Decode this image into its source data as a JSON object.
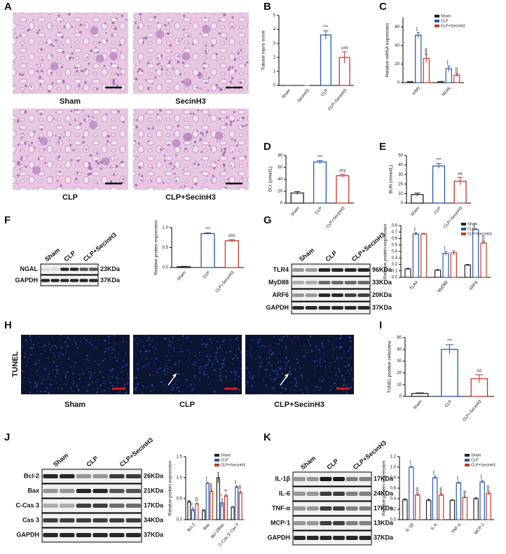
{
  "figure": {
    "panel_labels": [
      "A",
      "B",
      "C",
      "D",
      "E",
      "F",
      "G",
      "H",
      "I",
      "J",
      "K"
    ],
    "histology": {
      "labels": [
        "Sham",
        "SecinH3",
        "CLP",
        "CLP+SecinH3"
      ]
    },
    "tunel": {
      "stain": "TUNEL",
      "labels": [
        "Sham",
        "CLP",
        "CLP+SecinH3"
      ]
    },
    "blots": [
      {
        "lanes": [
          "Sham",
          "CLP",
          "CLP+SecinH3"
        ],
        "proteins": [
          "NGAL",
          "GAPDH"
        ],
        "sizes": [
          "23KDa",
          "37KDa"
        ]
      },
      {
        "lanes": [
          "Sham",
          "CLP",
          "CLP+SecinH3"
        ],
        "proteins": [
          "TLR4",
          "MyD88",
          "ARF6",
          "GAPDH"
        ],
        "sizes": [
          "96KDa",
          "33KDa",
          "20KDa",
          "37KDa"
        ]
      },
      {
        "lanes": [
          "Sham",
          "CLP",
          "CLP+SecinH3"
        ],
        "proteins": [
          "Bcl-2",
          "Bax",
          "C-Cas 3",
          "Cas 3",
          "GAPDH"
        ],
        "sizes": [
          "26KDa",
          "21KDa",
          "17KDa",
          "34KDa",
          "37KDa"
        ]
      },
      {
        "lanes": [
          "Sham",
          "CLP",
          "CLP+SecinH3"
        ],
        "proteins": [
          "IL-1β",
          "IL-6",
          "TNF-α",
          "MCP-1",
          "GAPDH"
        ],
        "sizes": [
          "17KDa",
          "24KDa",
          "17KDa",
          "13KDa",
          "37KDa"
        ]
      }
    ]
  },
  "chart_data": [
    {
      "type": "bar",
      "y_label": "Tubular injury score",
      "categories": [
        "Sham",
        "SecinH3",
        "CLP",
        "CLP+SecinH3"
      ],
      "values": [
        0,
        0,
        3.6,
        2.0
      ],
      "errors": [
        0,
        0,
        0.3,
        0.4
      ],
      "colors": [
        "#222222",
        "#777777",
        "#2457b0",
        "#c0392b"
      ],
      "annotations": [
        null,
        null,
        "***",
        "###"
      ],
      "ylim": [
        0,
        5
      ],
      "yticks": [
        0,
        1,
        2,
        3,
        4,
        5
      ]
    },
    {
      "type": "grouped_bar",
      "y_label": "Relative mRNA expression",
      "categories": [
        "KIM1",
        "NGAL"
      ],
      "series": [
        {
          "name": "Sham",
          "color": "#222222",
          "values": [
            1,
            1
          ],
          "errors": [
            0.2,
            0.3
          ]
        },
        {
          "name": "CLP",
          "color": "#2457b0",
          "values": [
            51,
            15
          ],
          "errors": [
            3,
            3
          ],
          "annotations": [
            "***",
            "***"
          ]
        },
        {
          "name": "CLP+SecinH3",
          "color": "#c0392b",
          "values": [
            26,
            8
          ],
          "errors": [
            4,
            1.5
          ],
          "annotations": [
            "###",
            "###"
          ]
        }
      ],
      "ylim": [
        0,
        70
      ],
      "yticks": [
        0,
        20,
        40,
        60
      ],
      "legend": "upper right"
    },
    {
      "type": "bar",
      "y_label": "SCr (umol/L)",
      "categories": [
        "Sham",
        "CLP",
        "CLP+SecinH3"
      ],
      "values": [
        17,
        69,
        46
      ],
      "errors": [
        2.5,
        2.5,
        2.5
      ],
      "colors": [
        "#222222",
        "#2457b0",
        "#c0392b"
      ],
      "annotations": [
        null,
        "***",
        "###"
      ],
      "ylim": [
        0,
        80
      ],
      "yticks": [
        0,
        20,
        40,
        60,
        80
      ]
    },
    {
      "type": "bar",
      "y_label": "BUN (mmol/L)",
      "categories": [
        "Sham",
        "CLP",
        "CLP+SecinH3"
      ],
      "values": [
        9,
        39,
        23
      ],
      "errors": [
        1.5,
        2.5,
        4
      ],
      "colors": [
        "#222222",
        "#2457b0",
        "#c0392b"
      ],
      "annotations": [
        null,
        "***",
        "##"
      ],
      "ylim": [
        0,
        50
      ],
      "yticks": [
        0,
        10,
        20,
        30,
        40,
        50
      ]
    },
    {
      "type": "bar",
      "y_label": "Relative protein expression",
      "categories": [
        "Sham",
        "CLP",
        "CLP+SecinH3"
      ],
      "values": [
        0.02,
        0.85,
        0.67
      ],
      "errors": [
        0.01,
        0.02,
        0.03
      ],
      "colors": [
        "#222222",
        "#2457b0",
        "#c0392b"
      ],
      "annotations": [
        null,
        "***",
        "###"
      ],
      "ylim": [
        0,
        1.0
      ],
      "yticks": [
        {
          "value": 0,
          "label": "0.0"
        },
        {
          "value": 0.5,
          "label": "0.5"
        },
        {
          "value": 1.0,
          "label": "1.0"
        }
      ]
    },
    {
      "type": "grouped_bar",
      "y_label": "Relative protein expression",
      "categories": [
        "TLR4",
        "MyD88",
        "ARF6"
      ],
      "series": [
        {
          "name": "Sham",
          "color": "#222222",
          "values": [
            0.13,
            0.11,
            0.19
          ],
          "errors": [
            0.01,
            0.01,
            0.01
          ]
        },
        {
          "name": "CLP",
          "color": "#2457b0",
          "values": [
            0.67,
            0.37,
            0.74
          ],
          "errors": [
            0.02,
            0.03,
            0.01
          ],
          "annotations": [
            "***",
            "***",
            "***"
          ]
        },
        {
          "name": "CLP+SecinH3",
          "color": "#c0392b",
          "values": [
            0.67,
            0.38,
            0.53
          ],
          "errors": [
            0.01,
            0.03,
            0.02
          ],
          "annotations": [
            null,
            null,
            "###"
          ]
        }
      ],
      "ylim": [
        0,
        0.8
      ],
      "yticks": [
        {
          "value": 0,
          "label": "0.0"
        },
        0.1,
        0.2,
        0.3,
        0.4,
        0.5,
        0.6,
        0.7,
        0.8
      ],
      "legend": "upper right"
    },
    {
      "type": "bar",
      "y_label": "TUNEL positive cells/view",
      "categories": [
        "Sham",
        "CLP",
        "CLP+SecinH3"
      ],
      "values": [
        2.5,
        40,
        15
      ],
      "errors": [
        0.5,
        4,
        3.5
      ],
      "colors": [
        "#222222",
        "#2457b0",
        "#c0392b"
      ],
      "annotations": [
        null,
        "***",
        "##"
      ],
      "ylim": [
        0,
        50
      ],
      "yticks": [
        0,
        10,
        20,
        30,
        40,
        50
      ]
    },
    {
      "type": "grouped_bar",
      "y_label": "Relative protein expression",
      "categories": [
        "Bcl-2",
        "Bax",
        "Bcl-2/Bax",
        "C-Cas 3/ Cas 3"
      ],
      "series": [
        {
          "name": "Sham",
          "color": "#222222",
          "values": [
            0.43,
            0.22,
            1.0,
            0.3
          ],
          "errors": [
            0.03,
            0.02,
            0.12,
            0.01
          ]
        },
        {
          "name": "CLP",
          "color": "#2457b0",
          "values": [
            0.24,
            0.87,
            0.4,
            0.78
          ],
          "errors": [
            0.05,
            0.02,
            0.1,
            0.03
          ],
          "annotations": [
            "**",
            "***",
            "**",
            "***"
          ]
        },
        {
          "name": "CLP+SecinH3",
          "color": "#c0392b",
          "values": [
            0.38,
            0.68,
            0.57,
            0.65
          ],
          "errors": [
            0.02,
            0.03,
            0.04,
            0.04
          ],
          "annotations": [
            "##",
            "###",
            "#",
            "##"
          ]
        }
      ],
      "ylim": [
        0,
        1.5
      ],
      "yticks": [
        {
          "value": 0,
          "label": "0.0"
        },
        {
          "value": 0.5,
          "label": "0.5"
        },
        {
          "value": 1.0,
          "label": "1.0"
        },
        1.5
      ],
      "legend": "upper right"
    },
    {
      "type": "grouped_bar",
      "y_label": "Relative protein expression",
      "categories": [
        "IL-1β",
        "IL-6",
        "TNF-α",
        "MCP-1"
      ],
      "series": [
        {
          "name": "Sham",
          "color": "#222222",
          "values": [
            0.38,
            0.37,
            0.37,
            0.4
          ],
          "errors": [
            0.02,
            0.02,
            0.01,
            0.02
          ]
        },
        {
          "name": "CLP",
          "color": "#2457b0",
          "values": [
            1.0,
            0.8,
            0.7,
            0.72
          ],
          "errors": [
            0.02,
            0.03,
            0.02,
            0.03
          ],
          "annotations": [
            "***",
            "***",
            "***",
            "***"
          ]
        },
        {
          "name": "CLP+SecinH3",
          "color": "#c0392b",
          "values": [
            0.47,
            0.47,
            0.42,
            0.5
          ],
          "errors": [
            0.02,
            0.02,
            0.01,
            0.03
          ],
          "annotations": [
            "###",
            "###",
            "###",
            "###"
          ]
        }
      ],
      "ylim": [
        0,
        1.2
      ],
      "yticks": [
        {
          "value": 0,
          "label": "0.0"
        },
        0.2,
        0.4,
        0.6,
        0.8,
        {
          "value": 1.0,
          "label": "1.0"
        },
        1.2
      ],
      "legend": "upper right"
    }
  ]
}
